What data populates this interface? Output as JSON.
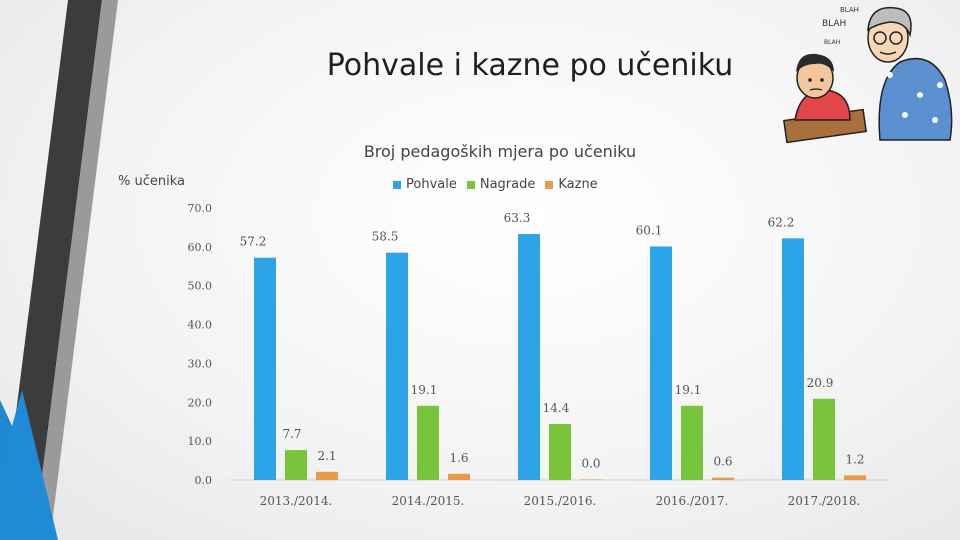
{
  "slide": {
    "title": "Pohvale i kazne po učeniku"
  },
  "illustration": {
    "speech_lines": [
      "BLAH",
      "BLAH",
      "BLAH"
    ]
  },
  "chart_data": {
    "type": "bar",
    "title": "Broj pedagoških mjera po učeniku",
    "ylabel": "% učenika",
    "xlabel": "",
    "categories": [
      "2013./2014.",
      "2014./2015.",
      "2015./2016.",
      "2016./2017.",
      "2017./2018."
    ],
    "series": [
      {
        "name": "Pohvale",
        "color": "#2ea4e8",
        "values": [
          57.2,
          58.5,
          63.3,
          60.1,
          62.2
        ]
      },
      {
        "name": "Nagrade",
        "color": "#78c43a",
        "values": [
          7.7,
          19.1,
          14.4,
          19.1,
          20.9
        ]
      },
      {
        "name": "Kazne",
        "color": "#e89a44",
        "values": [
          2.1,
          1.6,
          0.0,
          0.6,
          1.2
        ]
      }
    ],
    "ylim": [
      0,
      70
    ],
    "yticks": [
      "0.0",
      "10.0",
      "20.0",
      "30.0",
      "40.0",
      "50.0",
      "60.0",
      "70.0"
    ],
    "legend_position": "top",
    "grid": false
  }
}
